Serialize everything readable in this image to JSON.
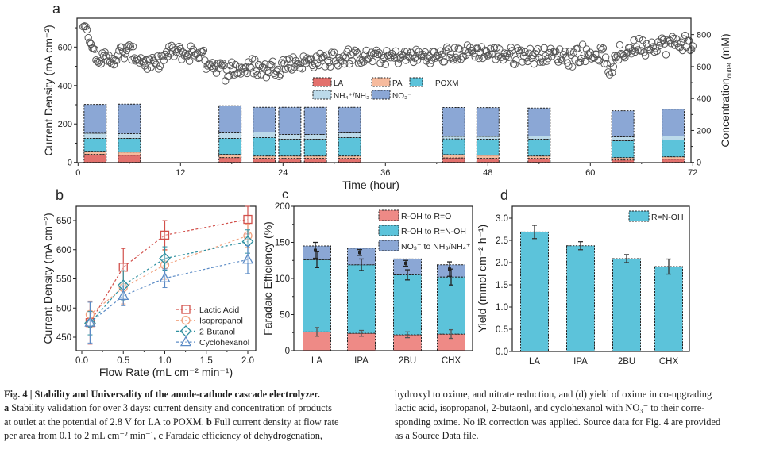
{
  "panel_labels": {
    "a": "a",
    "b": "b",
    "c": "c",
    "d": "d"
  },
  "colors": {
    "LA": "#e3716d",
    "PA": "#f6bb9e",
    "POXM": "#5cc3da",
    "NH": "#bcdaea",
    "NO3": "#8ba7d5",
    "lactic": "#d2504b",
    "isopropanol": "#f1a27f",
    "butanol": "#2e8f9f",
    "cyclohexanol": "#5b8bc6",
    "c_RO": "#ee8a86",
    "c_RNOH": "#5cc3da",
    "c_NO3": "#8ba7d5",
    "d_bar": "#5cc3da"
  },
  "chart_data": [
    {
      "panel": "a",
      "type": "bar+scatter",
      "xlabel": "Time (hour)",
      "ylabel": "Current Density (mA cm⁻²)",
      "ylabel_right_main": "Concentration",
      "ylabel_right_sub": "outlet",
      "ylabel_right_unit": " (mM)",
      "xlim": [
        0,
        72
      ],
      "ylim_left": [
        0,
        750
      ],
      "ylim_right": [
        0,
        900
      ],
      "x_ticks": [
        "0",
        "12",
        "24",
        "36",
        "48",
        "60",
        "72"
      ],
      "y_ticks_left": [
        "0",
        "200",
        "400",
        "600"
      ],
      "y_ticks_right": [
        "0",
        "200",
        "400",
        "600",
        "800"
      ],
      "legend": [
        {
          "key": "LA",
          "label": "LA"
        },
        {
          "key": "PA",
          "label": "PA"
        },
        {
          "key": "POXM",
          "label": "POXM"
        },
        {
          "key": "NH",
          "label": "NH₄⁺/NH₃"
        },
        {
          "key": "NO3",
          "label": "NO₃⁻"
        }
      ],
      "bar_series_order": [
        "LA",
        "PA",
        "POXM",
        "NH",
        "NO3"
      ],
      "bar_width_hours": 2.6,
      "bars_mM": [
        {
          "t": 2.0,
          "values": [
            50,
            20,
            80,
            33,
            180
          ]
        },
        {
          "t": 6.0,
          "values": [
            45,
            20,
            85,
            30,
            185
          ]
        },
        {
          "t": 17.8,
          "values": [
            30,
            20,
            100,
            35,
            170
          ]
        },
        {
          "t": 21.8,
          "values": [
            25,
            15,
            115,
            35,
            155
          ]
        },
        {
          "t": 24.8,
          "values": [
            25,
            15,
            105,
            30,
            170
          ]
        },
        {
          "t": 27.8,
          "values": [
            25,
            15,
            105,
            30,
            170
          ]
        },
        {
          "t": 31.8,
          "values": [
            25,
            15,
            115,
            30,
            160
          ]
        },
        {
          "t": 44.0,
          "values": [
            28,
            21,
            98,
            16,
            181
          ]
        },
        {
          "t": 48.0,
          "values": [
            25,
            20,
            100,
            18,
            180
          ]
        },
        {
          "t": 54.0,
          "values": [
            25,
            15,
            105,
            20,
            175
          ]
        },
        {
          "t": 63.8,
          "values": [
            15,
            15,
            105,
            25,
            163
          ]
        },
        {
          "t": 69.7,
          "values": [
            20,
            15,
            105,
            25,
            168
          ]
        }
      ],
      "current_density_trend_mA": [
        [
          0.6,
          720
        ],
        [
          1.0,
          690
        ],
        [
          1.5,
          620
        ],
        [
          2.0,
          575
        ],
        [
          3.0,
          525
        ],
        [
          4.0,
          540
        ],
        [
          5.0,
          560
        ],
        [
          6.0,
          580
        ],
        [
          7.0,
          545
        ],
        [
          8.0,
          515
        ],
        [
          9.0,
          505
        ],
        [
          10.0,
          545
        ],
        [
          11.0,
          580
        ],
        [
          12.0,
          570
        ],
        [
          13.0,
          560
        ],
        [
          14.0,
          575
        ],
        [
          15.0,
          535
        ],
        [
          16.0,
          505
        ],
        [
          17.0,
          485
        ],
        [
          18.0,
          480
        ],
        [
          20.0,
          490
        ],
        [
          22.0,
          485
        ],
        [
          24.0,
          515
        ],
        [
          26.0,
          520
        ],
        [
          28.0,
          530
        ],
        [
          30.0,
          540
        ],
        [
          32.0,
          548
        ],
        [
          34.0,
          550
        ],
        [
          36.0,
          545
        ],
        [
          38.0,
          550
        ],
        [
          40.0,
          555
        ],
        [
          42.0,
          550
        ],
        [
          44.0,
          560
        ],
        [
          46.0,
          580
        ],
        [
          48.0,
          570
        ],
        [
          50.0,
          565
        ],
        [
          52.0,
          560
        ],
        [
          54.0,
          560
        ],
        [
          56.0,
          558
        ],
        [
          58.0,
          555
        ],
        [
          60.5,
          565
        ],
        [
          61.6,
          560
        ],
        [
          62.0,
          470
        ],
        [
          62.6,
          500
        ],
        [
          63.5,
          560
        ],
        [
          65.0,
          600
        ],
        [
          67.0,
          610
        ],
        [
          70.0,
          625
        ],
        [
          72.0,
          610
        ]
      ],
      "scatter_spread_mA": 38
    },
    {
      "panel": "b",
      "type": "line",
      "xlabel": "Flow Rate (mL cm⁻² min⁻¹)",
      "ylabel": "Current Density (mA cm⁻²)",
      "xlim": [
        -0.07,
        2.1
      ],
      "ylim": [
        427,
        675
      ],
      "x_ticks": [
        "0.0",
        "0.5",
        "1.0",
        "1.5",
        "2.0"
      ],
      "y_ticks": [
        "450",
        "500",
        "550",
        "600",
        "650"
      ],
      "series": [
        {
          "name": "Lactic Acid",
          "color_key": "lactic",
          "marker": "square",
          "x": [
            0.1,
            0.5,
            1.0,
            2.0
          ],
          "y": [
            475,
            570,
            625,
            652
          ],
          "err": [
            37,
            32,
            25,
            25
          ]
        },
        {
          "name": "Isopropanol",
          "color_key": "isopropanol",
          "marker": "circle",
          "x": [
            0.1,
            0.5,
            1.0,
            2.0
          ],
          "y": [
            489,
            535,
            574,
            624
          ],
          "err": [
            22,
            28,
            25,
            20
          ]
        },
        {
          "name": "2-Butanol",
          "color_key": "butanol",
          "marker": "diamond",
          "x": [
            0.1,
            0.5,
            1.0,
            2.0
          ],
          "y": [
            474,
            539,
            585,
            614
          ],
          "err": [
            20,
            25,
            20,
            20
          ]
        },
        {
          "name": "Cyclohexanol",
          "color_key": "cyclohexanol",
          "marker": "triangle",
          "x": [
            0.1,
            0.5,
            1.0,
            2.0
          ],
          "y": [
            475,
            521,
            551,
            583
          ],
          "err": [
            35,
            17,
            16,
            24
          ]
        }
      ]
    },
    {
      "panel": "c",
      "type": "bar",
      "stacked": true,
      "ylabel": "Faradaic Efficiency (%)",
      "ylim": [
        0,
        200
      ],
      "y_ticks": [
        "0",
        "50",
        "100",
        "150",
        "200"
      ],
      "categories": [
        "LA",
        "IPA",
        "2BU",
        "CHX"
      ],
      "series": [
        {
          "name": "R-OH to R=O",
          "color_key": "c_RO",
          "values": [
            26,
            24,
            22,
            23
          ],
          "err": [
            6,
            4,
            4,
            6
          ]
        },
        {
          "name": "R-OH to R=N-OH",
          "color_key": "c_RNOH",
          "values": [
            100,
            95,
            83,
            79
          ],
          "err": [
            11,
            8,
            7,
            11
          ]
        },
        {
          "name": "NO₃⁻ to NH₃/NH₄⁺",
          "color_key": "c_NO3",
          "values": [
            19,
            23,
            22,
            17
          ],
          "err": [
            11,
            4,
            4,
            10
          ]
        }
      ]
    },
    {
      "panel": "d",
      "type": "bar",
      "ylabel": "Yield (mmol cm⁻² h⁻¹)",
      "ylim": [
        0,
        3.27
      ],
      "y_ticks": [
        "0.0",
        "0.5",
        "1.0",
        "1.5",
        "2.0",
        "2.5",
        "3.0"
      ],
      "categories": [
        "LA",
        "IPA",
        "2BU",
        "CHX"
      ],
      "series": [
        {
          "name": "R=N-OH",
          "color_key": "d_bar",
          "values": [
            2.69,
            2.38,
            2.09,
            1.91
          ],
          "err": [
            0.15,
            0.09,
            0.09,
            0.17
          ]
        }
      ]
    }
  ],
  "caption": {
    "left": [
      [
        {
          "t": "Fig. 4 | Stability and Universality of the anode-cathode cascade electrolyzer.",
          "b": true
        }
      ],
      [
        {
          "t": "a",
          "b": true
        },
        {
          "t": " Stability validation for over 3 days: current density and concentration of products",
          "b": false
        }
      ],
      [
        {
          "t": "at outlet at the potential of 2.8 V for LA to POXM. ",
          "b": false
        },
        {
          "t": "b",
          "b": true
        },
        {
          "t": " Full current density at flow rate",
          "b": false
        }
      ],
      [
        {
          "t": "per area from 0.1 to 2 mL cm⁻² min⁻¹, ",
          "b": false
        },
        {
          "t": "c",
          "b": true
        },
        {
          "t": " Faradaic efficiency of dehydrogenation,",
          "b": false
        }
      ]
    ],
    "right": [
      [
        {
          "t": "hydroxyl to oxime, and nitrate reduction, and (d) yield of oxime in co-upgrading",
          "b": false
        }
      ],
      [
        {
          "t": "lactic acid, isopropanol, 2-butaonl, and cyclohexanol with NO₃⁻ to their corre-",
          "b": false
        }
      ],
      [
        {
          "t": "sponding oxime. No iR correction was applied. Source data for Fig. 4 are provided",
          "b": false
        }
      ],
      [
        {
          "t": "as a Source Data file.",
          "b": false
        }
      ]
    ]
  }
}
